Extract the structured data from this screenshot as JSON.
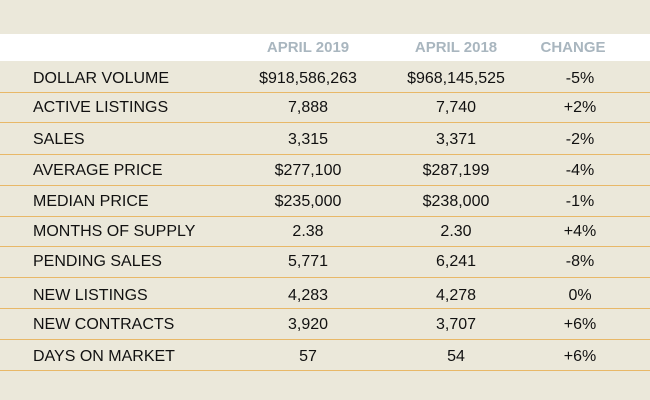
{
  "header": {
    "col1": "APRIL 2019",
    "col2": "APRIL 2018",
    "col3": "CHANGE"
  },
  "rows": [
    {
      "label": "DOLLAR VOLUME",
      "v2019": "$918,586,263",
      "v2018": "$968,145,525",
      "change": "-5%"
    },
    {
      "label": "ACTIVE LISTINGS",
      "v2019": "7,888",
      "v2018": "7,740",
      "change": "+2%"
    },
    {
      "label": "SALES",
      "v2019": "3,315",
      "v2018": "3,371",
      "change": "-2%"
    },
    {
      "label": "AVERAGE PRICE",
      "v2019": "$277,100",
      "v2018": "$287,199",
      "change": "-4%"
    },
    {
      "label": "MEDIAN PRICE",
      "v2019": "$235,000",
      "v2018": "$238,000",
      "change": "-1%"
    },
    {
      "label": "MONTHS OF SUPPLY",
      "v2019": "2.38",
      "v2018": "2.30",
      "change": "+4%"
    },
    {
      "label": "PENDING SALES",
      "v2019": "5,771",
      "v2018": "6,241",
      "change": "-8%"
    },
    {
      "label": "NEW LISTINGS",
      "v2019": "4,283",
      "v2018": "4,278",
      "change": "0%"
    },
    {
      "label": "NEW CONTRACTS",
      "v2019": "3,920",
      "v2018": "3,707",
      "change": "+6%"
    },
    {
      "label": "DAYS ON MARKET",
      "v2019": "57",
      "v2018": "54",
      "change": "+6%"
    }
  ],
  "colors": {
    "background": "#ebe8da",
    "header_band": "#ffffff",
    "header_text": "#a9b6bf",
    "rule": "#e8b868"
  }
}
